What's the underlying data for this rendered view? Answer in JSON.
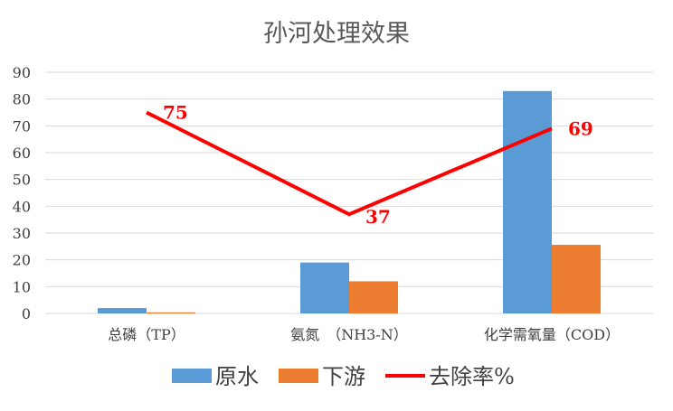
{
  "chart_data": {
    "type": "bar",
    "title": "孙河处理效果",
    "categories": [
      "总磷（TP）",
      "氨氮　（NH3-N）",
      "化学需氧量（COD）"
    ],
    "series": [
      {
        "name": "原水",
        "type": "bar",
        "color": "#5B9BD5",
        "values": [
          2.0,
          19,
          83
        ]
      },
      {
        "name": "下游",
        "type": "bar",
        "color": "#ED7D31",
        "values": [
          0.4,
          12,
          25.6
        ]
      },
      {
        "name": "去除率%",
        "type": "line",
        "color": "#FF0000",
        "values": [
          75,
          37,
          69
        ],
        "data_labels": [
          "75",
          "37",
          "69"
        ]
      }
    ],
    "ylim": [
      0,
      90
    ],
    "yticks": [
      "0",
      "10",
      "20",
      "30",
      "40",
      "50",
      "60",
      "70",
      "80",
      "90"
    ],
    "grid": true,
    "legend": "bottom"
  }
}
